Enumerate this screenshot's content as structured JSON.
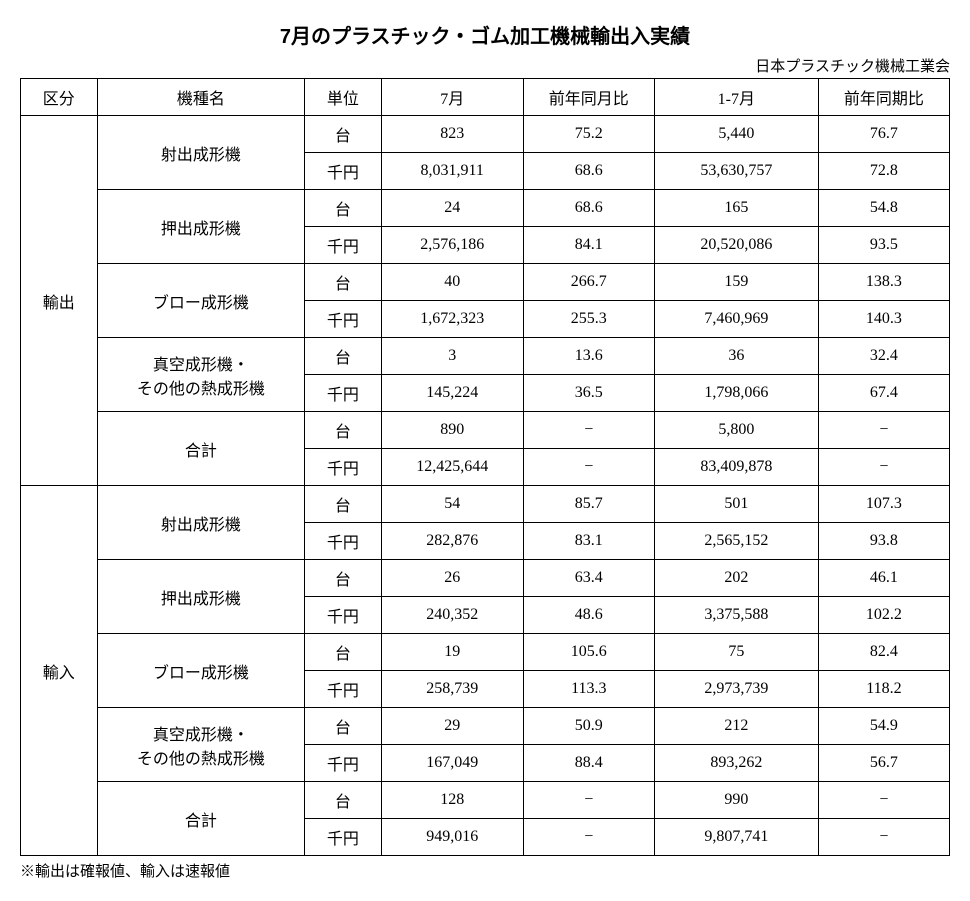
{
  "title": "7月のプラスチック・ゴム加工機械輸出入実績",
  "source": "日本プラスチック機械工業会",
  "headers": {
    "category": "区分",
    "machineType": "機種名",
    "unit": "単位",
    "july": "7月",
    "yoy": "前年同月比",
    "cumulative": "1-7月",
    "cumYoy": "前年同期比"
  },
  "units": {
    "dai": "台",
    "senyen": "千円"
  },
  "categories": {
    "export": "輸出",
    "import": "輸入"
  },
  "types": {
    "injection": "射出成形機",
    "extrusion": "押出成形機",
    "blow": "ブロー成形機",
    "vacuum1": "真空成形機・",
    "vacuum2": "その他の熱成形機",
    "total": "合計"
  },
  "exp": {
    "inj": {
      "u": [
        "823",
        "75.2",
        "5,440",
        "76.7"
      ],
      "y": [
        "8,031,911",
        "68.6",
        "53,630,757",
        "72.8"
      ]
    },
    "ext": {
      "u": [
        "24",
        "68.6",
        "165",
        "54.8"
      ],
      "y": [
        "2,576,186",
        "84.1",
        "20,520,086",
        "93.5"
      ]
    },
    "blo": {
      "u": [
        "40",
        "266.7",
        "159",
        "138.3"
      ],
      "y": [
        "1,672,323",
        "255.3",
        "7,460,969",
        "140.3"
      ]
    },
    "vac": {
      "u": [
        "3",
        "13.6",
        "36",
        "32.4"
      ],
      "y": [
        "145,224",
        "36.5",
        "1,798,066",
        "67.4"
      ]
    },
    "tot": {
      "u": [
        "890",
        "−",
        "5,800",
        "−"
      ],
      "y": [
        "12,425,644",
        "−",
        "83,409,878",
        "−"
      ]
    }
  },
  "imp": {
    "inj": {
      "u": [
        "54",
        "85.7",
        "501",
        "107.3"
      ],
      "y": [
        "282,876",
        "83.1",
        "2,565,152",
        "93.8"
      ]
    },
    "ext": {
      "u": [
        "26",
        "63.4",
        "202",
        "46.1"
      ],
      "y": [
        "240,352",
        "48.6",
        "3,375,588",
        "102.2"
      ]
    },
    "blo": {
      "u": [
        "19",
        "105.6",
        "75",
        "82.4"
      ],
      "y": [
        "258,739",
        "113.3",
        "2,973,739",
        "118.2"
      ]
    },
    "vac": {
      "u": [
        "29",
        "50.9",
        "212",
        "54.9"
      ],
      "y": [
        "167,049",
        "88.4",
        "893,262",
        "56.7"
      ]
    },
    "tot": {
      "u": [
        "128",
        "−",
        "990",
        "−"
      ],
      "y": [
        "949,016",
        "−",
        "9,807,741",
        "−"
      ]
    }
  },
  "footnote": "※輸出は確報値、輸入は速報値"
}
